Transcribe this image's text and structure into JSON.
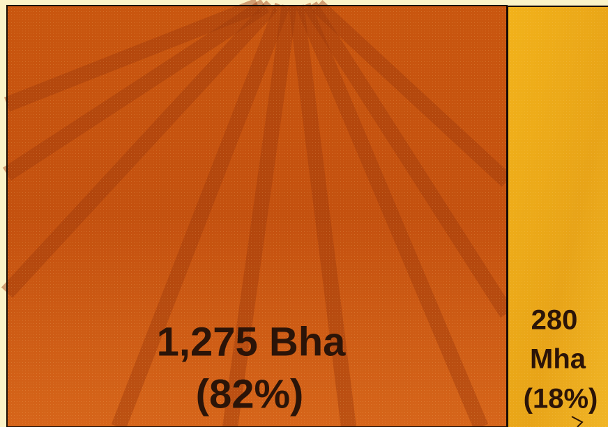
{
  "panels": [
    {
      "lines": [
        "1,275 Bha",
        "(82%)"
      ]
    },
    {
      "lines": [
        "280",
        "Mha",
        "(18%)"
      ]
    }
  ]
}
